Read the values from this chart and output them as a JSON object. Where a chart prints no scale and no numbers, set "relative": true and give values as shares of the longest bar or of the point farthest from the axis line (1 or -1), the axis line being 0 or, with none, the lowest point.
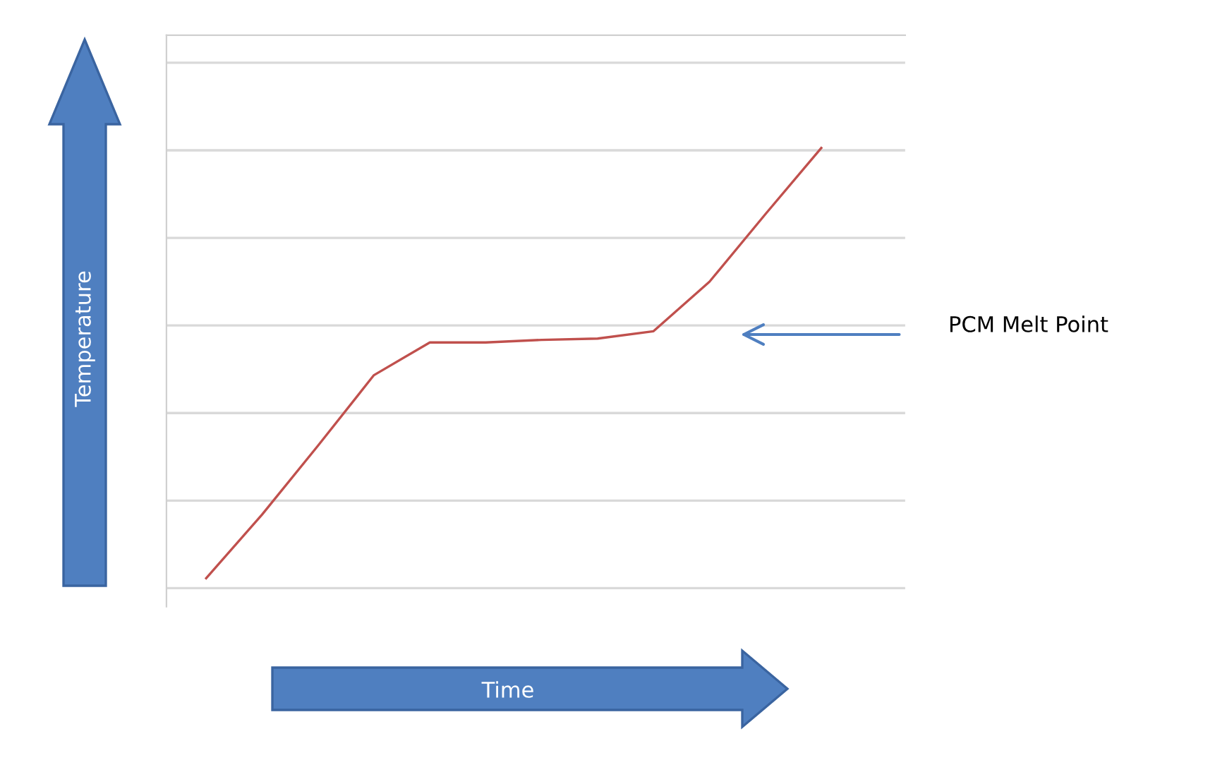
{
  "chart_data": {
    "type": "line",
    "relative": true,
    "xlabel": "Time",
    "ylabel": "Temperature",
    "categories": [
      null,
      null,
      null,
      null,
      null,
      null,
      null,
      null,
      null,
      null,
      null,
      null
    ],
    "series": [
      {
        "color": "#c0504d",
        "values": [
          0,
          0.148,
          0.308,
          0.472,
          0.548,
          0.548,
          0.554,
          0.557,
          0.574,
          0.689,
          0.846,
          1
        ]
      }
    ],
    "annotations": [
      "PCM Melt Point"
    ],
    "grid": "y",
    "legend": false,
    "marker": "none",
    "line_style": "solid"
  }
}
